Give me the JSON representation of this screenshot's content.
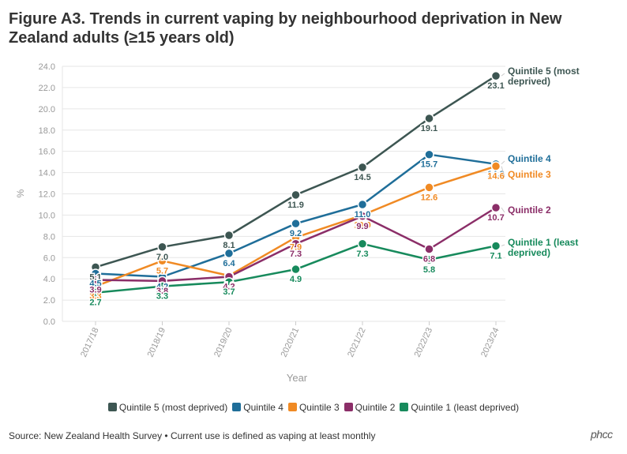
{
  "chart_data": {
    "type": "line",
    "title": "Figure A3. Trends in current vaping by neighbourhood deprivation in New Zealand adults (≥15 years old)",
    "xlabel": "Year",
    "ylabel": "%",
    "ylim": [
      0,
      24
    ],
    "yticks": [
      "0.0",
      "2.0",
      "4.0",
      "6.0",
      "8.0",
      "10.0",
      "12.0",
      "14.0",
      "16.0",
      "18.0",
      "20.0",
      "22.0",
      "24.0"
    ],
    "categories": [
      "2017/18",
      "2018/19",
      "2019/20",
      "2020/21",
      "2021/22",
      "2022/23",
      "2023/24"
    ],
    "series": [
      {
        "name": "Quintile 5 (most deprived)",
        "end_label": [
          "Quintile 5 (most",
          "deprived)"
        ],
        "color": "#3d5652",
        "values": [
          5.1,
          7.0,
          8.1,
          11.9,
          14.5,
          19.1,
          23.1
        ],
        "labels": [
          "5.1",
          "7.0",
          "8.1",
          "11.9",
          "14.5",
          "19.1",
          "23.1"
        ]
      },
      {
        "name": "Quintile 4",
        "end_label": [
          "Quintile 4"
        ],
        "color": "#1f6e99",
        "values": [
          4.5,
          4.2,
          6.4,
          9.2,
          11.0,
          15.7,
          14.8
        ],
        "labels": [
          "4.5",
          "4.2",
          "6.4",
          "9.2",
          "11.0",
          "15.7",
          "14.8"
        ]
      },
      {
        "name": "Quintile 3",
        "end_label": [
          "Quintile 3"
        ],
        "color": "#f08a24",
        "values": [
          3.3,
          5.7,
          4.3,
          7.9,
          10.0,
          12.6,
          14.6
        ],
        "labels": [
          "3.3",
          "5.7",
          "4.3",
          "7.9",
          "10.0",
          "12.6",
          "14.6"
        ]
      },
      {
        "name": "Quintile 2",
        "end_label": [
          "Quintile 2"
        ],
        "color": "#8b2e68",
        "values": [
          3.9,
          3.8,
          4.2,
          7.3,
          9.9,
          6.8,
          10.7
        ],
        "labels": [
          "3.9",
          "3.8",
          "4.2",
          "7.3",
          "9.9",
          "6.8",
          "10.7"
        ]
      },
      {
        "name": "Quintile 1 (least deprived)",
        "end_label": [
          "Quintile 1 (least",
          "deprived)"
        ],
        "color": "#178a5c",
        "values": [
          2.7,
          3.3,
          3.7,
          4.9,
          7.3,
          5.8,
          7.1
        ],
        "labels": [
          "2.7",
          "3.3",
          "3.7",
          "4.9",
          "7.3",
          "5.8",
          "7.1"
        ]
      }
    ]
  },
  "footer": {
    "source": "Source: New Zealand Health Survey • Current use is defined as vaping at least monthly",
    "logo": "phcc"
  }
}
